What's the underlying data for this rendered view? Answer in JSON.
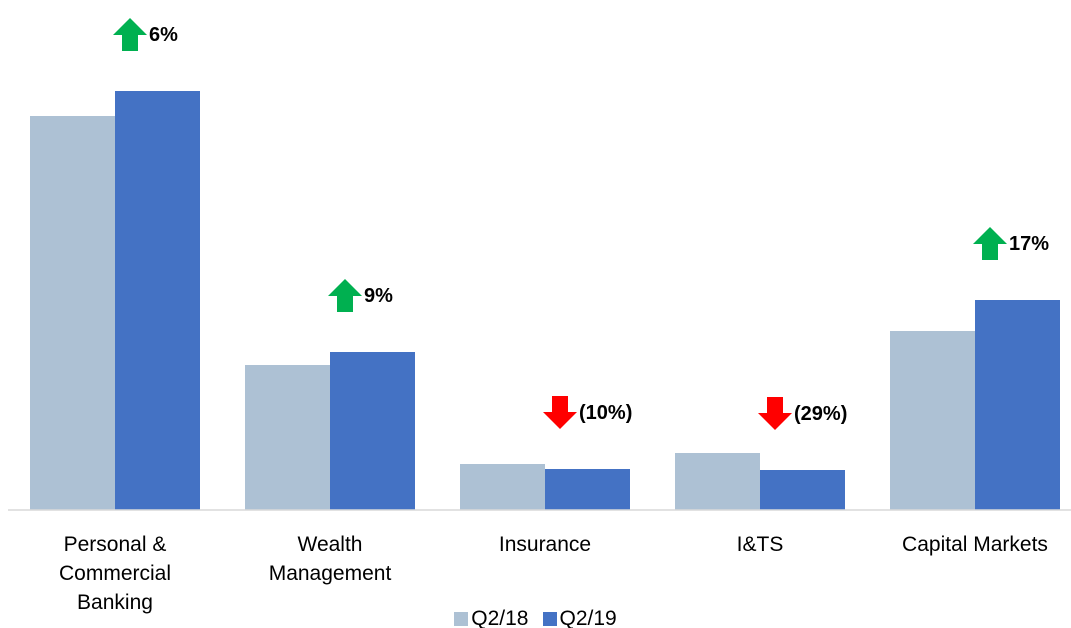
{
  "chart_data": {
    "type": "bar",
    "categories": [
      "Personal & Commercial Banking",
      "Wealth Management",
      "Insurance",
      "I&TS",
      "Capital Markets"
    ],
    "series": [
      {
        "name": "Q2/18",
        "color": "#adc1d4",
        "values": [
          394,
          145,
          46,
          57,
          179
        ]
      },
      {
        "name": "Q2/19",
        "color": "#4472c4",
        "values": [
          419,
          158,
          41,
          40,
          210
        ]
      }
    ],
    "ylim": [
      0,
      440
    ],
    "annotations": [
      {
        "label": "6%",
        "direction": "up"
      },
      {
        "label": "9%",
        "direction": "up"
      },
      {
        "label": "(10%)",
        "direction": "down"
      },
      {
        "label": "(29%)",
        "direction": "down"
      },
      {
        "label": "17%",
        "direction": "up"
      }
    ],
    "up_color": "#00b050",
    "down_color": "#ff0000",
    "legend": "bottom"
  }
}
